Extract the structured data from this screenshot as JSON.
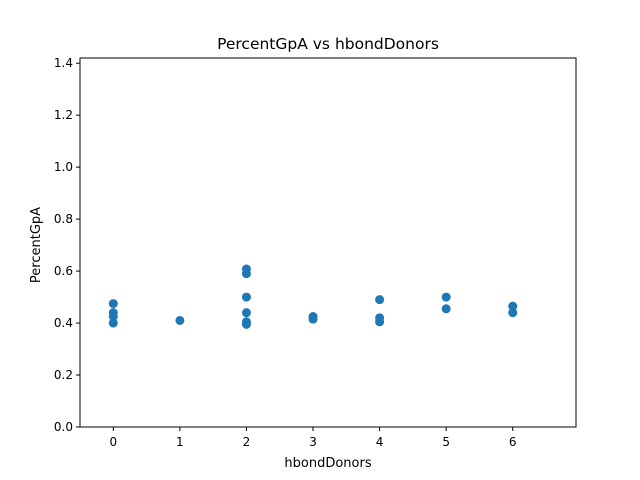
{
  "chart_data": {
    "type": "scatter",
    "title": "PercentGpA vs hbondDonors",
    "xlabel": "hbondDonors",
    "ylabel": "PercentGpA",
    "xlim": [
      -0.5,
      6.95
    ],
    "ylim": [
      0,
      1.42
    ],
    "xticks": [
      "0",
      "1",
      "2",
      "3",
      "4",
      "5",
      "6"
    ],
    "yticks": [
      "0.0",
      "0.2",
      "0.4",
      "0.6",
      "0.8",
      "1.0",
      "1.2",
      "1.4"
    ],
    "grid": false,
    "marker_color": "#1f77b4",
    "points": [
      {
        "x": 0,
        "y": 0.475
      },
      {
        "x": 0,
        "y": 0.44
      },
      {
        "x": 0,
        "y": 0.425
      },
      {
        "x": 0,
        "y": 0.4
      },
      {
        "x": 1,
        "y": 0.41
      },
      {
        "x": 2,
        "y": 0.608
      },
      {
        "x": 2,
        "y": 0.59
      },
      {
        "x": 2,
        "y": 0.5
      },
      {
        "x": 2,
        "y": 0.44
      },
      {
        "x": 2,
        "y": 0.405
      },
      {
        "x": 2,
        "y": 0.395
      },
      {
        "x": 3,
        "y": 0.425
      },
      {
        "x": 3,
        "y": 0.415
      },
      {
        "x": 4,
        "y": 0.49
      },
      {
        "x": 4,
        "y": 0.42
      },
      {
        "x": 4,
        "y": 0.405
      },
      {
        "x": 5,
        "y": 0.5
      },
      {
        "x": 5,
        "y": 0.455
      },
      {
        "x": 6,
        "y": 0.465
      },
      {
        "x": 6,
        "y": 0.44
      }
    ]
  }
}
